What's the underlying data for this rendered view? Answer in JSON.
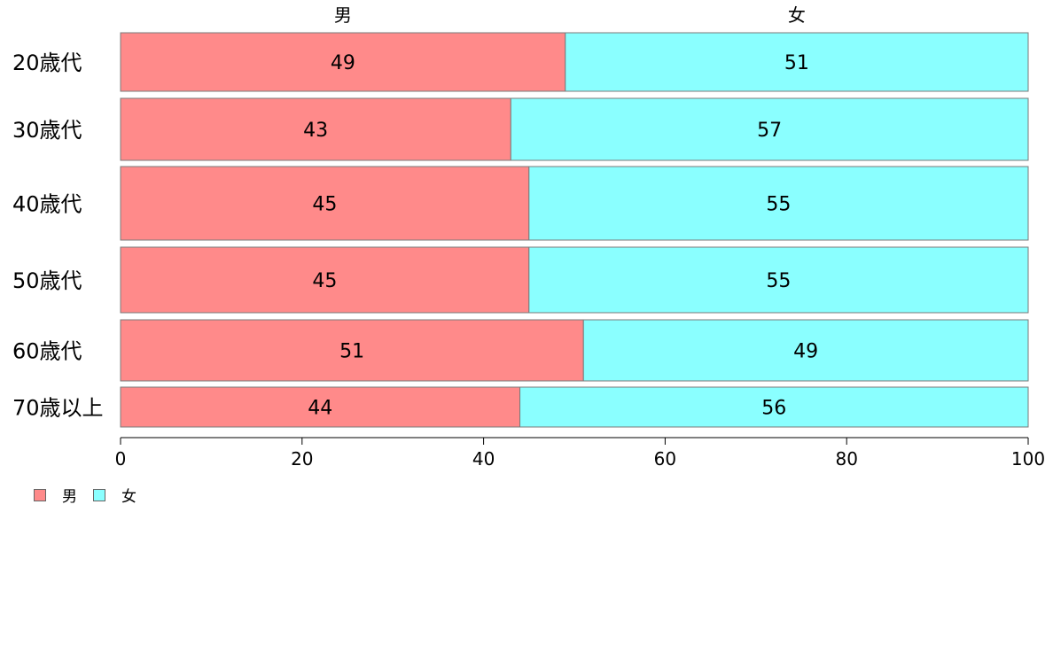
{
  "chart_data": {
    "type": "bar",
    "orientation": "horizontal",
    "stacked": true,
    "categories": [
      "20歳代",
      "30歳代",
      "40歳代",
      "50歳代",
      "60歳代",
      "70歳以上"
    ],
    "series": [
      {
        "name": "男",
        "values": [
          49,
          43,
          45,
          45,
          51,
          44
        ]
      },
      {
        "name": "女",
        "values": [
          51,
          57,
          55,
          55,
          49,
          56
        ]
      }
    ],
    "column_labels": [
      "男",
      "女"
    ],
    "xlim": [
      0,
      100
    ],
    "xticks": [
      0,
      20,
      40,
      60,
      80,
      100
    ],
    "title": "",
    "xlabel": "",
    "ylabel": "",
    "grid": false,
    "legend_position": "bottom-left",
    "colors": {
      "男": "#ff8a8a",
      "女": "#8affff"
    }
  }
}
